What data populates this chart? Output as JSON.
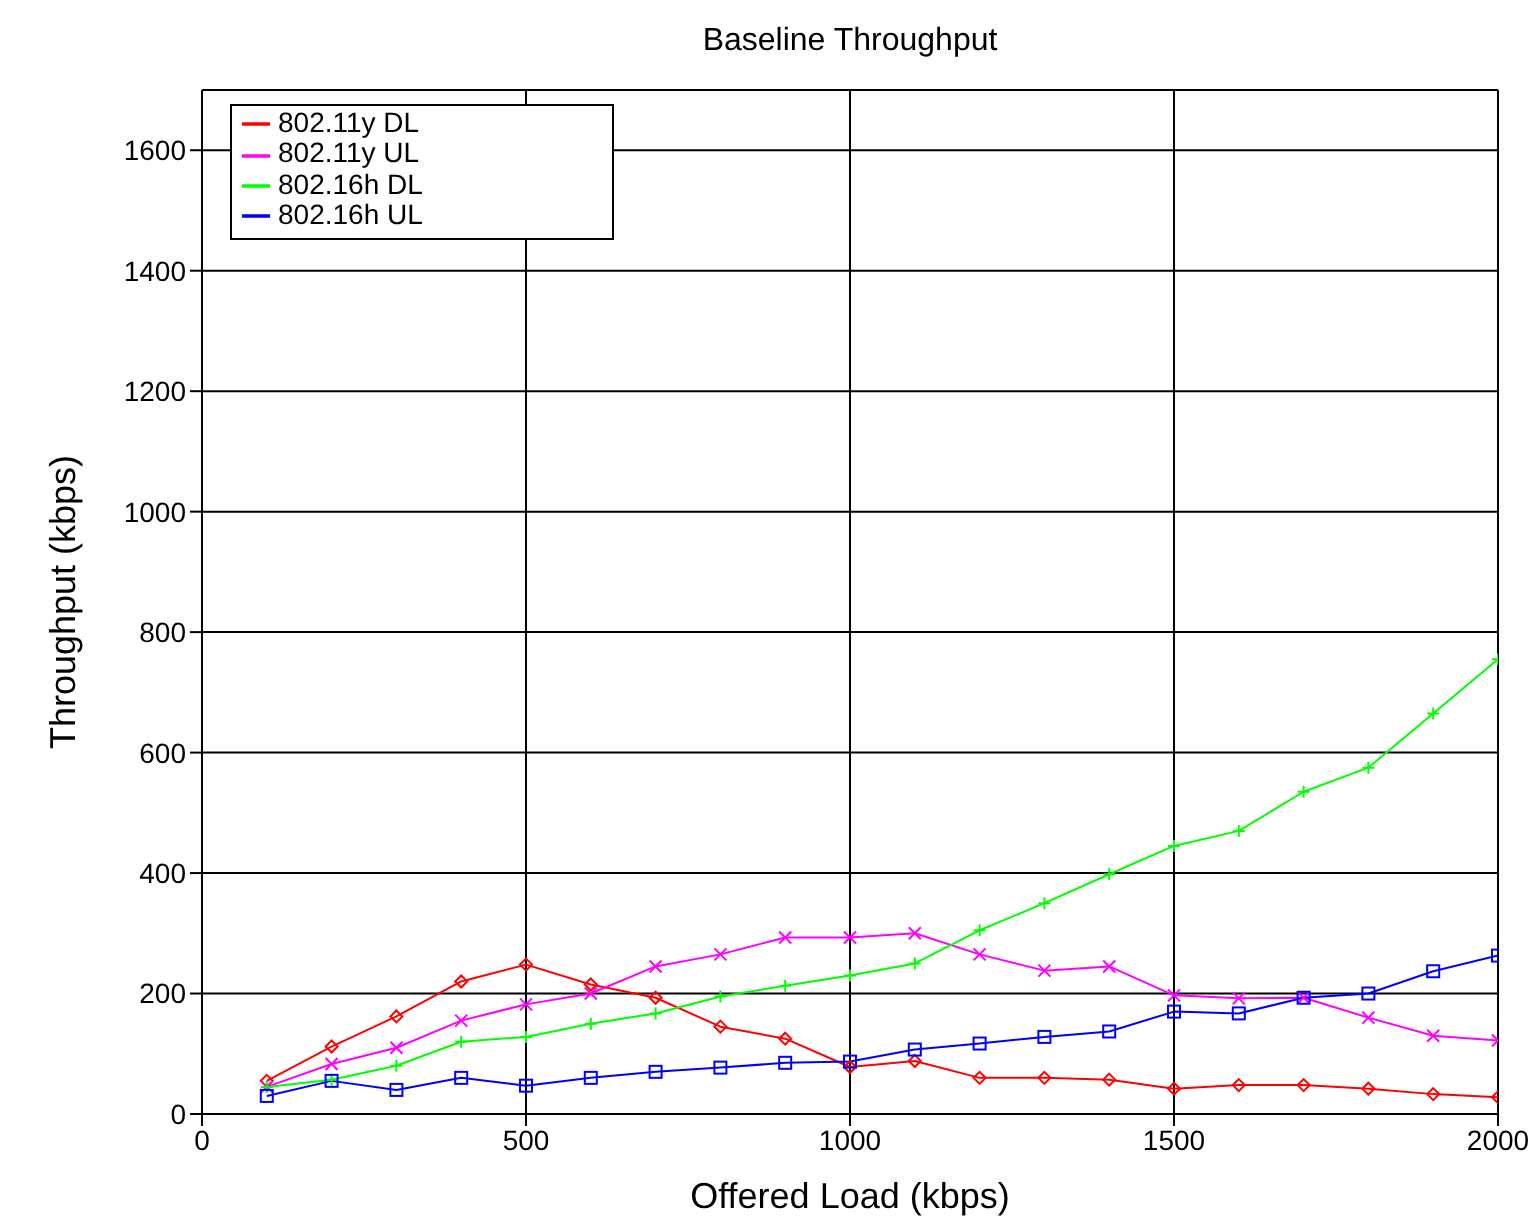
{
  "chart_data": {
    "type": "line",
    "title": "Baseline Throughput",
    "xlabel": "Offered Load (kbps)",
    "ylabel": "Throughput (kbps)",
    "x": [
      100,
      200,
      300,
      400,
      500,
      600,
      700,
      800,
      900,
      1000,
      1100,
      1200,
      1300,
      1400,
      1500,
      1600,
      1700,
      1800,
      1900,
      2000
    ],
    "series": [
      {
        "name": "802.11y DL",
        "color": "#ff0000",
        "marker": "diamond",
        "values": [
          55,
          112,
          162,
          220,
          248,
          215,
          193,
          145,
          125,
          78,
          88,
          60,
          60,
          57,
          42,
          48,
          48,
          42,
          33,
          28
        ]
      },
      {
        "name": "802.11y UL",
        "color": "#ff00ff",
        "marker": "cross",
        "values": [
          45,
          83,
          110,
          155,
          182,
          200,
          245,
          265,
          293,
          293,
          300,
          265,
          238,
          245,
          197,
          192,
          193,
          160,
          130,
          122
        ]
      },
      {
        "name": "802.16h DL",
        "color": "#00ff00",
        "marker": "plus",
        "values": [
          45,
          57,
          80,
          120,
          128,
          150,
          167,
          195,
          213,
          230,
          250,
          305,
          350,
          398,
          445,
          470,
          535,
          575,
          665,
          755
        ]
      },
      {
        "name": "802.16h UL",
        "color": "#0000ff",
        "marker": "square",
        "values": [
          30,
          55,
          40,
          60,
          47,
          60,
          70,
          77,
          85,
          87,
          107,
          117,
          128,
          137,
          170,
          167,
          193,
          200,
          237,
          263
        ]
      }
    ],
    "xlim": [
      0,
      2000
    ],
    "xticks": [
      0,
      500,
      1000,
      1500,
      2000
    ],
    "ylim": [
      0,
      1700
    ],
    "yticks": [
      0,
      200,
      400,
      600,
      800,
      1000,
      1200,
      1400,
      1600
    ],
    "grid": true,
    "legend": "top left"
  }
}
